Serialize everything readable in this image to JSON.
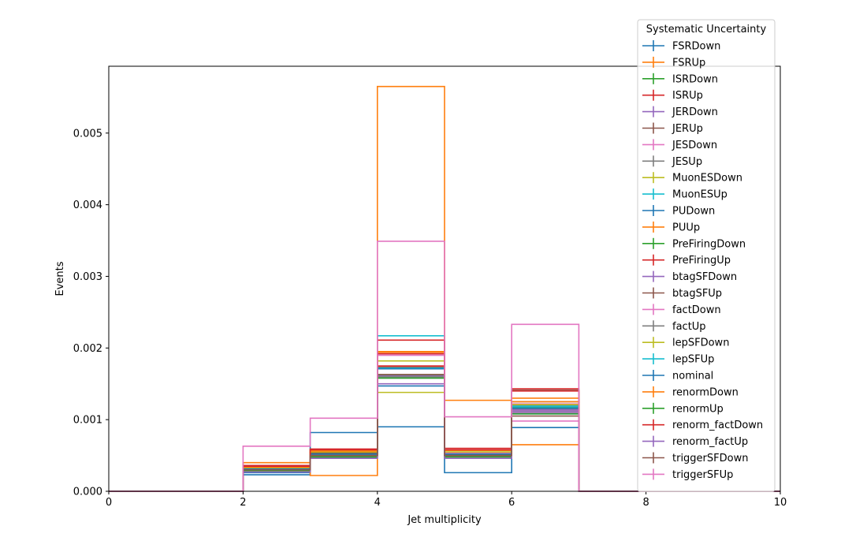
{
  "chart_data": {
    "type": "histogram-step",
    "xlabel": "Jet multiplicity",
    "ylabel": "Events",
    "xlim": [
      0,
      10
    ],
    "ylim": [
      0,
      0.005933
    ],
    "x_ticks": [
      0,
      2,
      4,
      6,
      8,
      10
    ],
    "x_tick_labels": [
      "0",
      "2",
      "4",
      "6",
      "8",
      "10"
    ],
    "y_ticks": [
      0,
      0.001,
      0.002,
      0.003,
      0.004,
      0.005
    ],
    "y_tick_labels": [
      "0.000",
      "0.001",
      "0.002",
      "0.003",
      "0.004",
      "0.005"
    ],
    "bin_edges": [
      0,
      1,
      2,
      3,
      4,
      5,
      6,
      7,
      8,
      9,
      10
    ],
    "legend": {
      "title": "Systematic Uncertainty",
      "placement": "top-right"
    },
    "series": [
      {
        "name": "FSRDown",
        "color": "#1f77b4",
        "values": [
          0,
          0,
          0.00023,
          0.00047,
          0.00147,
          0.00046,
          0.00108,
          0,
          0,
          0
        ]
      },
      {
        "name": "FSRUp",
        "color": "#ff7f0e",
        "values": [
          0,
          0,
          0.0004,
          0.00057,
          0.00195,
          0.0005,
          0.0013,
          0,
          0,
          0
        ]
      },
      {
        "name": "ISRDown",
        "color": "#2ca02c",
        "values": [
          0,
          0,
          0.00031,
          0.00053,
          0.00172,
          0.00052,
          0.00117,
          0,
          0,
          0
        ]
      },
      {
        "name": "ISRUp",
        "color": "#d62728",
        "values": [
          0,
          0,
          0.00033,
          0.00054,
          0.00175,
          0.00053,
          0.0012,
          0,
          0,
          0
        ]
      },
      {
        "name": "JERDown",
        "color": "#9467bd",
        "values": [
          0,
          0,
          0.00029,
          0.0005,
          0.0016,
          0.0005,
          0.00112,
          0,
          0,
          0
        ]
      },
      {
        "name": "JERUp",
        "color": "#8c564b",
        "values": [
          0,
          0,
          0.0003,
          0.00051,
          0.00162,
          0.00051,
          0.00114,
          0,
          0,
          0
        ]
      },
      {
        "name": "JESDown",
        "color": "#e377c2",
        "values": [
          0,
          0,
          0.00031,
          0.00052,
          0.0019,
          0.00052,
          0.00098,
          0,
          0,
          0
        ]
      },
      {
        "name": "JESUp",
        "color": "#7f7f7f",
        "values": [
          0,
          0,
          0.00028,
          0.00049,
          0.00158,
          0.00049,
          0.00125,
          0,
          0,
          0
        ]
      },
      {
        "name": "MuonESDown",
        "color": "#bcbd22",
        "values": [
          0,
          0,
          0.00027,
          0.00046,
          0.00138,
          0.00046,
          0.0011,
          0,
          0,
          0
        ]
      },
      {
        "name": "MuonESUp",
        "color": "#17becf",
        "values": [
          0,
          0,
          0.00029,
          0.0005,
          0.00217,
          0.0005,
          0.00118,
          0,
          0,
          0
        ]
      },
      {
        "name": "PUDown",
        "color": "#1f77b4",
        "values": [
          0,
          0,
          0.00026,
          0.00082,
          0.0009,
          0.00026,
          0.00089,
          0,
          0,
          0
        ]
      },
      {
        "name": "PUUp",
        "color": "#ff7f0e",
        "values": [
          0,
          0,
          0.00036,
          0.00022,
          0.00565,
          0.00127,
          0.00065,
          0,
          0,
          0
        ]
      },
      {
        "name": "PreFiringDown",
        "color": "#2ca02c",
        "values": [
          0,
          0,
          0.0003,
          0.00051,
          0.00162,
          0.00051,
          0.00115,
          0,
          0,
          0
        ]
      },
      {
        "name": "PreFiringUp",
        "color": "#d62728",
        "values": [
          0,
          0,
          0.00036,
          0.00059,
          0.00211,
          0.0006,
          0.00143,
          0,
          0,
          0
        ]
      },
      {
        "name": "btagSFDown",
        "color": "#9467bd",
        "values": [
          0,
          0,
          0.00029,
          0.0005,
          0.00161,
          0.0005,
          0.00114,
          0,
          0,
          0
        ]
      },
      {
        "name": "btagSFUp",
        "color": "#8c564b",
        "values": [
          0,
          0,
          0.00032,
          0.00054,
          0.00173,
          0.00054,
          0.00141,
          0,
          0,
          0
        ]
      },
      {
        "name": "factDown",
        "color": "#e377c2",
        "values": [
          0,
          0,
          0.00031,
          0.00052,
          0.0019,
          0.00053,
          0.00122,
          0,
          0,
          0
        ]
      },
      {
        "name": "factUp",
        "color": "#7f7f7f",
        "values": [
          0,
          0,
          0.00029,
          0.00049,
          0.0016,
          0.00049,
          0.00119,
          0,
          0,
          0
        ]
      },
      {
        "name": "lepSFDown",
        "color": "#bcbd22",
        "values": [
          0,
          0,
          0.00032,
          0.00055,
          0.00182,
          0.00055,
          0.00121,
          0,
          0,
          0
        ]
      },
      {
        "name": "lepSFUp",
        "color": "#17becf",
        "values": [
          0,
          0,
          0.00031,
          0.00052,
          0.00172,
          0.00052,
          0.00119,
          0,
          0,
          0
        ]
      },
      {
        "name": "nominal",
        "color": "#1f77b4",
        "values": [
          0,
          0,
          0.00031,
          0.00052,
          0.00171,
          0.00052,
          0.00116,
          0,
          0,
          0
        ]
      },
      {
        "name": "renormDown",
        "color": "#ff7f0e",
        "values": [
          0,
          0,
          0.00034,
          0.00056,
          0.00194,
          0.00057,
          0.00125,
          0,
          0,
          0
        ]
      },
      {
        "name": "renormUp",
        "color": "#2ca02c",
        "values": [
          0,
          0,
          0.00029,
          0.00048,
          0.00158,
          0.00048,
          0.00108,
          0,
          0,
          0
        ]
      },
      {
        "name": "renorm_factDown",
        "color": "#d62728",
        "values": [
          0,
          0,
          0.00035,
          0.00058,
          0.00192,
          0.00058,
          0.0014,
          0,
          0,
          0
        ]
      },
      {
        "name": "renorm_factUp",
        "color": "#9467bd",
        "values": [
          0,
          0,
          0.00027,
          0.00046,
          0.0015,
          0.00046,
          0.0011,
          0,
          0,
          0
        ]
      },
      {
        "name": "triggerSFDown",
        "color": "#8c564b",
        "values": [
          0,
          0,
          0.0003,
          0.0005,
          0.00163,
          0.0005,
          0.00105,
          0,
          0,
          0
        ]
      },
      {
        "name": "triggerSFUp",
        "color": "#e377c2",
        "values": [
          0,
          0,
          0.00063,
          0.00102,
          0.00349,
          0.00104,
          0.00233,
          0,
          0,
          0
        ]
      }
    ]
  }
}
